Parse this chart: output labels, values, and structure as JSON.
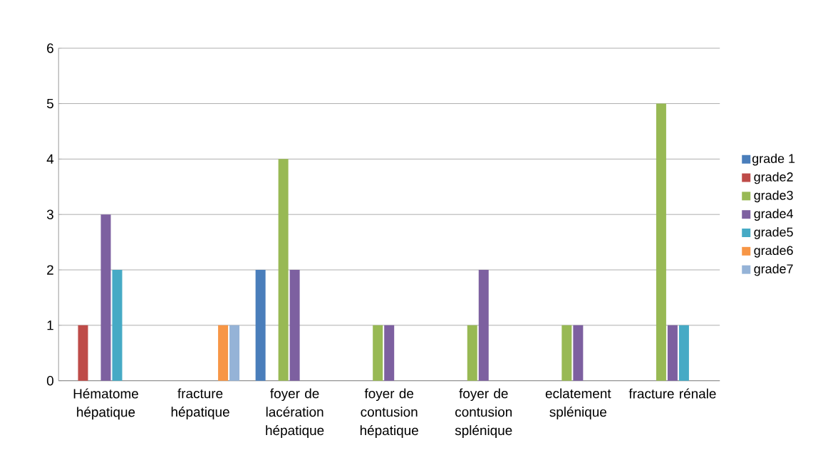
{
  "chart_data": {
    "type": "bar",
    "categories": [
      "Hématome hépatique",
      "fracture hépatique",
      "foyer de lacération hépatique",
      "foyer de contusion hépatique",
      "foyer de contusion splénique",
      "eclatement splénique",
      "fracture rénale"
    ],
    "series": [
      {
        "name": "grade 1",
        "color": "#4a7ebb",
        "values": [
          0,
          0,
          2,
          0,
          0,
          0,
          0
        ]
      },
      {
        "name": "grade2",
        "color": "#be4b48",
        "values": [
          1,
          0,
          0,
          0,
          0,
          0,
          0
        ]
      },
      {
        "name": "grade3",
        "color": "#98b954",
        "values": [
          0,
          0,
          4,
          1,
          1,
          1,
          5
        ]
      },
      {
        "name": "grade4",
        "color": "#7d60a0",
        "values": [
          3,
          0,
          2,
          1,
          2,
          1,
          1
        ]
      },
      {
        "name": "grade5",
        "color": "#46aac5",
        "values": [
          2,
          0,
          0,
          0,
          0,
          0,
          1
        ]
      },
      {
        "name": "grade6",
        "color": "#f79646",
        "values": [
          0,
          1,
          0,
          0,
          0,
          0,
          0
        ]
      },
      {
        "name": "grade7",
        "color": "#95b3d7",
        "values": [
          0,
          1,
          0,
          0,
          0,
          0,
          0
        ]
      }
    ],
    "ylim": [
      0,
      6
    ],
    "yticks": [
      0,
      1,
      2,
      3,
      4,
      5,
      6
    ],
    "grid": "y",
    "legend": "right"
  }
}
